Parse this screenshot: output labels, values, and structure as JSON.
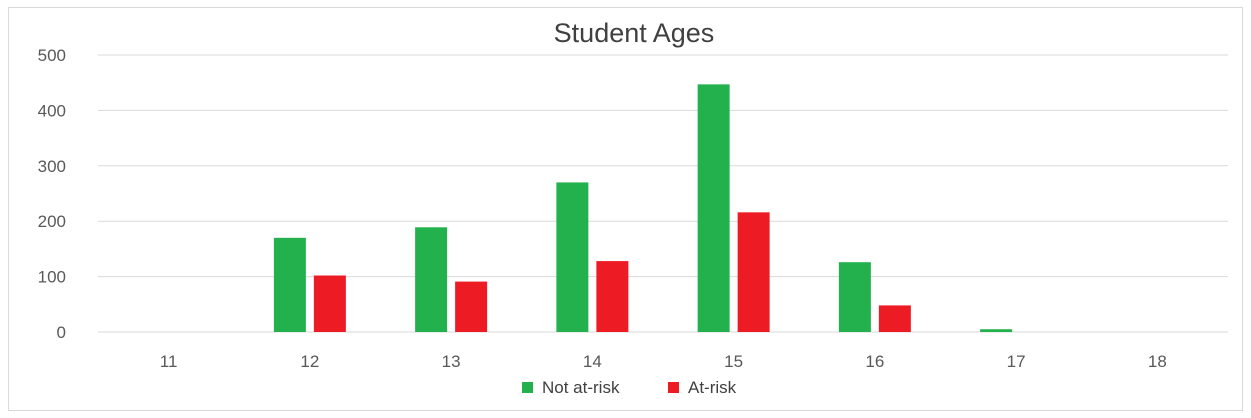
{
  "chart_data": {
    "type": "bar",
    "title": "Student Ages",
    "xlabel": "",
    "ylabel": "",
    "categories": [
      "11",
      "12",
      "13",
      "14",
      "15",
      "16",
      "17",
      "18"
    ],
    "series": [
      {
        "name": "Not at-risk",
        "color": "#22b14c",
        "values": [
          0,
          170,
          189,
          270,
          447,
          126,
          5,
          0
        ]
      },
      {
        "name": "At-risk",
        "color": "#ed1c24",
        "values": [
          0,
          102,
          91,
          128,
          216,
          48,
          0,
          0
        ]
      }
    ],
    "ylim": [
      0,
      500
    ],
    "yticks": [
      0,
      100,
      200,
      300,
      400,
      500
    ],
    "grid": true,
    "legend_position": "bottom"
  }
}
